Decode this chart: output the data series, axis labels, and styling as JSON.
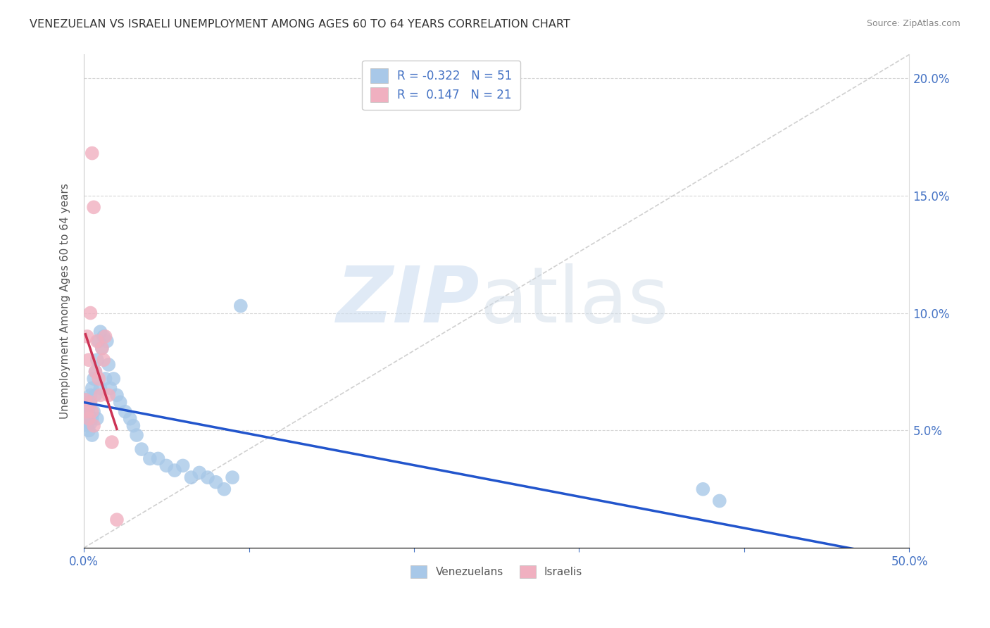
{
  "title": "VENEZUELAN VS ISRAELI UNEMPLOYMENT AMONG AGES 60 TO 64 YEARS CORRELATION CHART",
  "source": "Source: ZipAtlas.com",
  "ylabel": "Unemployment Among Ages 60 to 64 years",
  "xlim": [
    0,
    0.5
  ],
  "ylim": [
    0,
    0.21
  ],
  "xticks": [
    0.0,
    0.1,
    0.2,
    0.3,
    0.4,
    0.5
  ],
  "xticklabels": [
    "0.0%",
    "",
    "",
    "",
    "",
    "50.0%"
  ],
  "yticks": [
    0.0,
    0.05,
    0.1,
    0.15,
    0.2
  ],
  "yticklabels_right": [
    "",
    "5.0%",
    "10.0%",
    "15.0%",
    "20.0%"
  ],
  "venezuelan_color": "#a8c8e8",
  "israeli_color": "#f0b0c0",
  "trend_venezuelan_color": "#2255cc",
  "trend_israeli_color": "#cc3355",
  "diagonal_color": "#c8c8c8",
  "R_venezuelan": -0.322,
  "N_venezuelan": 51,
  "R_israeli": 0.147,
  "N_israeli": 21,
  "venezuelan_x": [
    0.001,
    0.001,
    0.002,
    0.002,
    0.002,
    0.003,
    0.003,
    0.003,
    0.004,
    0.004,
    0.004,
    0.005,
    0.005,
    0.005,
    0.006,
    0.006,
    0.007,
    0.007,
    0.008,
    0.008,
    0.009,
    0.01,
    0.01,
    0.011,
    0.012,
    0.013,
    0.014,
    0.015,
    0.016,
    0.018,
    0.02,
    0.022,
    0.025,
    0.028,
    0.03,
    0.032,
    0.035,
    0.04,
    0.045,
    0.05,
    0.055,
    0.06,
    0.065,
    0.07,
    0.075,
    0.08,
    0.085,
    0.09,
    0.095,
    0.375,
    0.385
  ],
  "venezuelan_y": [
    0.06,
    0.055,
    0.058,
    0.063,
    0.052,
    0.06,
    0.057,
    0.05,
    0.065,
    0.062,
    0.053,
    0.068,
    0.055,
    0.048,
    0.072,
    0.058,
    0.075,
    0.065,
    0.08,
    0.055,
    0.088,
    0.092,
    0.068,
    0.085,
    0.09,
    0.072,
    0.088,
    0.078,
    0.068,
    0.072,
    0.065,
    0.062,
    0.058,
    0.055,
    0.052,
    0.048,
    0.042,
    0.038,
    0.038,
    0.035,
    0.033,
    0.035,
    0.03,
    0.032,
    0.03,
    0.028,
    0.025,
    0.03,
    0.103,
    0.025,
    0.02
  ],
  "israeli_x": [
    0.001,
    0.002,
    0.002,
    0.003,
    0.003,
    0.004,
    0.004,
    0.005,
    0.005,
    0.006,
    0.006,
    0.007,
    0.008,
    0.009,
    0.01,
    0.011,
    0.012,
    0.013,
    0.015,
    0.017,
    0.02
  ],
  "israeli_y": [
    0.063,
    0.09,
    0.058,
    0.08,
    0.055,
    0.1,
    0.062,
    0.168,
    0.058,
    0.145,
    0.052,
    0.075,
    0.088,
    0.072,
    0.065,
    0.085,
    0.08,
    0.09,
    0.065,
    0.045,
    0.012
  ],
  "background_color": "#ffffff"
}
